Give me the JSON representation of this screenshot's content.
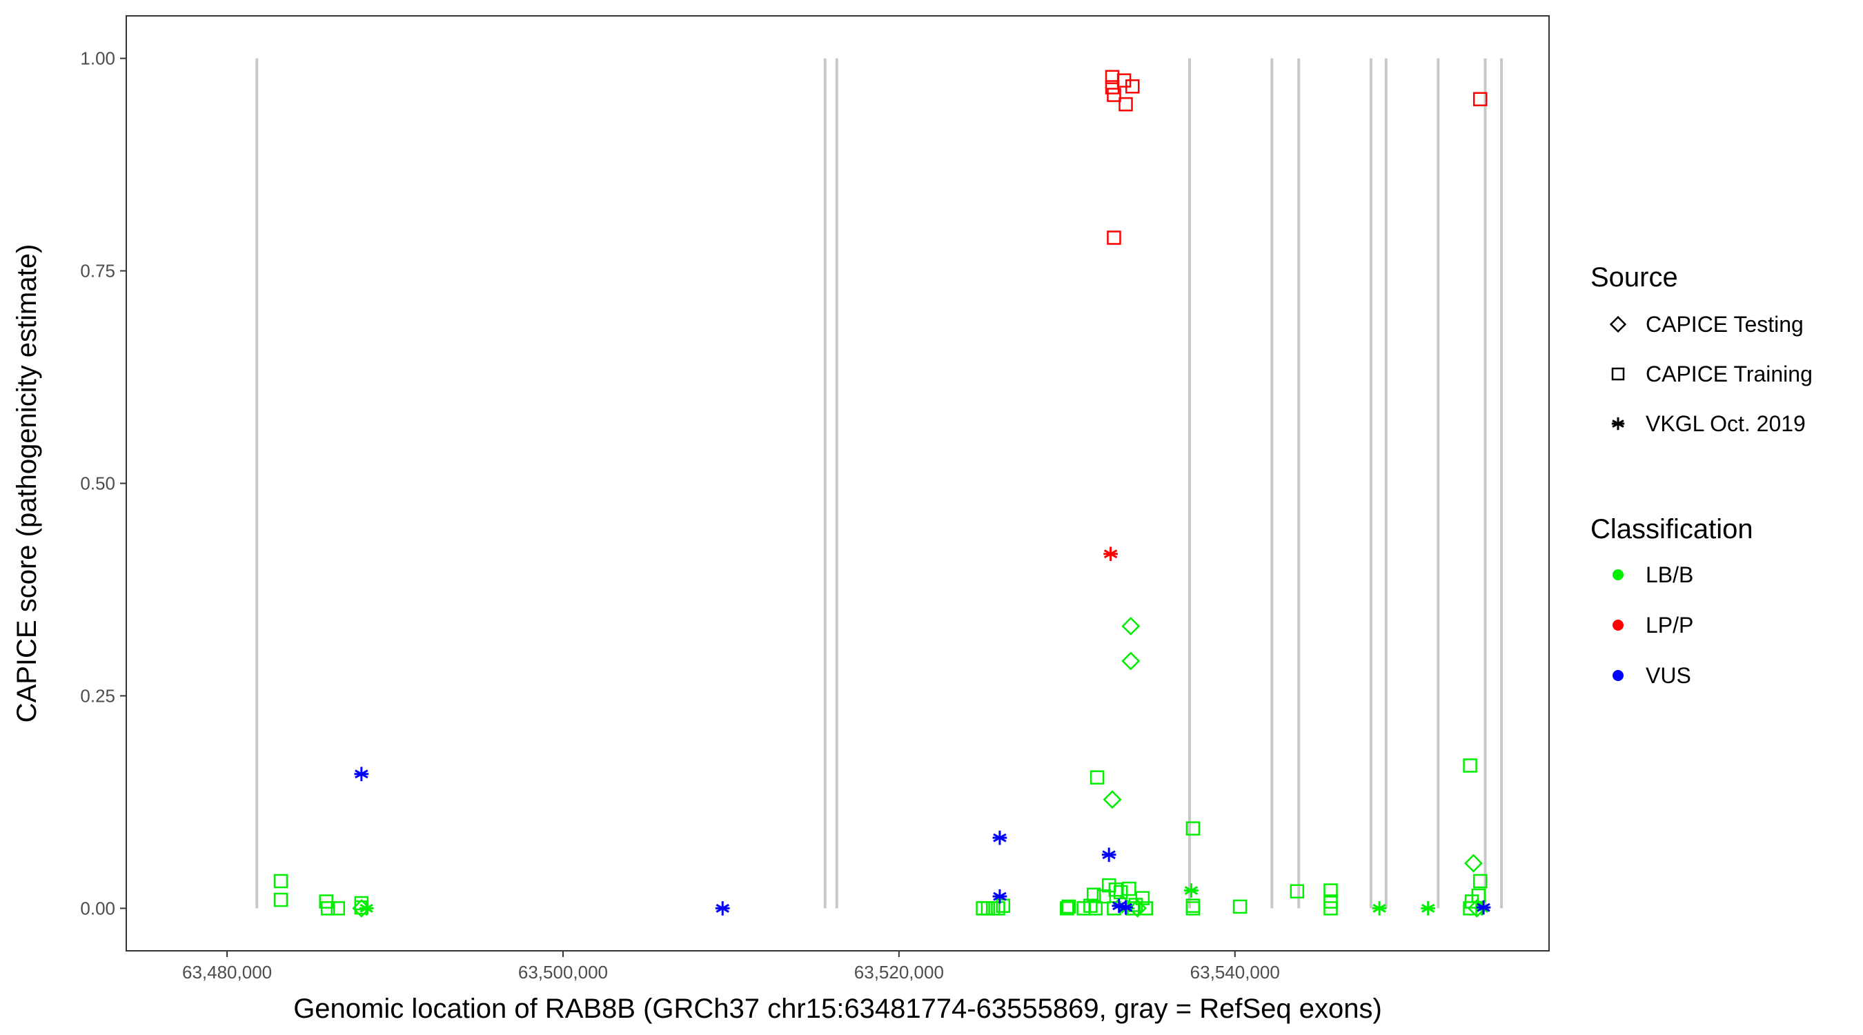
{
  "chart_data": {
    "type": "scatter",
    "xlabel": "Genomic location of RAB8B (GRCh37 chr15:63481774-63555869, gray = RefSeq exons)",
    "ylabel": "CAPICE score (pathogenicity estimate)",
    "xlim": [
      63474000,
      63558700
    ],
    "ylim": [
      -0.05,
      1.05
    ],
    "x_ticks": [
      63480000,
      63500000,
      63520000,
      63540000
    ],
    "x_tick_labels": [
      "63,480,000",
      "63,500,000",
      "63,520,000",
      "63,540,000"
    ],
    "y_ticks": [
      0,
      0.25,
      0.5,
      0.75,
      1.0
    ],
    "y_tick_labels": [
      "0.00",
      "0.25",
      "0.50",
      "0.75",
      "1.00"
    ],
    "grid": false,
    "exon_lines": [
      63481774,
      63515600,
      63516300,
      63537300,
      63542200,
      63543800,
      63548100,
      63549000,
      63552100,
      63554900,
      63555869
    ],
    "exon_line_color": "#c8c8c8",
    "legend_position": "right",
    "legend": {
      "source_title": "Source",
      "sources": [
        {
          "key": "testing",
          "label": "CAPICE Testing",
          "shape": "diamond"
        },
        {
          "key": "training",
          "label": "CAPICE Training",
          "shape": "square"
        },
        {
          "key": "vkgl",
          "label": "VKGL Oct. 2019",
          "shape": "asterisk"
        }
      ],
      "class_title": "Classification",
      "classes": [
        {
          "key": "LB/B",
          "label": "LB/B",
          "color": "#00ee00"
        },
        {
          "key": "LP/P",
          "label": "LP/P",
          "color": "#ff0000"
        },
        {
          "key": "VUS",
          "label": "VUS",
          "color": "#0000ff"
        }
      ]
    },
    "points": [
      {
        "x": 63483200,
        "y": 0.032,
        "source": "training",
        "class": "LB/B"
      },
      {
        "x": 63483200,
        "y": 0.01,
        "source": "training",
        "class": "LB/B"
      },
      {
        "x": 63485900,
        "y": 0.008,
        "source": "training",
        "class": "LB/B"
      },
      {
        "x": 63486000,
        "y": 0.0,
        "source": "training",
        "class": "LB/B"
      },
      {
        "x": 63486600,
        "y": 0.0,
        "source": "training",
        "class": "LB/B"
      },
      {
        "x": 63488000,
        "y": 0.006,
        "source": "training",
        "class": "LB/B"
      },
      {
        "x": 63488000,
        "y": 0.001,
        "source": "training",
        "class": "LB/B"
      },
      {
        "x": 63488300,
        "y": 0.0,
        "source": "vkgl",
        "class": "LB/B"
      },
      {
        "x": 63488000,
        "y": 0.0,
        "source": "testing",
        "class": "LB/B"
      },
      {
        "x": 63488000,
        "y": 0.158,
        "source": "vkgl",
        "class": "VUS"
      },
      {
        "x": 63509500,
        "y": 0.0,
        "source": "vkgl",
        "class": "VUS"
      },
      {
        "x": 63525000,
        "y": 0.0,
        "source": "training",
        "class": "LB/B"
      },
      {
        "x": 63525300,
        "y": 0.0,
        "source": "training",
        "class": "LB/B"
      },
      {
        "x": 63525600,
        "y": 0.0,
        "source": "training",
        "class": "LB/B"
      },
      {
        "x": 63525900,
        "y": 0.0,
        "source": "training",
        "class": "LB/B"
      },
      {
        "x": 63526200,
        "y": 0.003,
        "source": "training",
        "class": "LB/B"
      },
      {
        "x": 63526000,
        "y": 0.083,
        "source": "vkgl",
        "class": "VUS"
      },
      {
        "x": 63526000,
        "y": 0.014,
        "source": "vkgl",
        "class": "VUS"
      },
      {
        "x": 63530000,
        "y": 0.0,
        "source": "training",
        "class": "LB/B"
      },
      {
        "x": 63530100,
        "y": 0.002,
        "source": "training",
        "class": "LB/B"
      },
      {
        "x": 63531000,
        "y": 0.0,
        "source": "training",
        "class": "LB/B"
      },
      {
        "x": 63531400,
        "y": 0.003,
        "source": "training",
        "class": "LB/B"
      },
      {
        "x": 63531700,
        "y": 0.0,
        "source": "training",
        "class": "LB/B"
      },
      {
        "x": 63531600,
        "y": 0.016,
        "source": "training",
        "class": "LB/B"
      },
      {
        "x": 63532200,
        "y": 0.014,
        "source": "training",
        "class": "LB/B"
      },
      {
        "x": 63532500,
        "y": 0.027,
        "source": "training",
        "class": "LB/B"
      },
      {
        "x": 63532900,
        "y": 0.022,
        "source": "training",
        "class": "LB/B"
      },
      {
        "x": 63533200,
        "y": 0.019,
        "source": "training",
        "class": "LB/B"
      },
      {
        "x": 63533700,
        "y": 0.023,
        "source": "training",
        "class": "LB/B"
      },
      {
        "x": 63534100,
        "y": 0.004,
        "source": "training",
        "class": "LB/B"
      },
      {
        "x": 63534500,
        "y": 0.012,
        "source": "training",
        "class": "LB/B"
      },
      {
        "x": 63534700,
        "y": 0.0,
        "source": "training",
        "class": "LB/B"
      },
      {
        "x": 63532800,
        "y": 0.0,
        "source": "training",
        "class": "LB/B"
      },
      {
        "x": 63533900,
        "y": 0.0,
        "source": "training",
        "class": "LB/B"
      },
      {
        "x": 63531800,
        "y": 0.154,
        "source": "training",
        "class": "LB/B"
      },
      {
        "x": 63533800,
        "y": 0.332,
        "source": "testing",
        "class": "LB/B"
      },
      {
        "x": 63533800,
        "y": 0.291,
        "source": "testing",
        "class": "LB/B"
      },
      {
        "x": 63532700,
        "y": 0.128,
        "source": "testing",
        "class": "LB/B"
      },
      {
        "x": 63533300,
        "y": 0.005,
        "source": "testing",
        "class": "LB/B"
      },
      {
        "x": 63534200,
        "y": 0.0,
        "source": "testing",
        "class": "LB/B"
      },
      {
        "x": 63533600,
        "y": 0.0,
        "source": "vkgl",
        "class": "LB/B"
      },
      {
        "x": 63532500,
        "y": 0.063,
        "source": "vkgl",
        "class": "VUS"
      },
      {
        "x": 63533100,
        "y": 0.003,
        "source": "vkgl",
        "class": "VUS"
      },
      {
        "x": 63533500,
        "y": 0.001,
        "source": "vkgl",
        "class": "VUS"
      },
      {
        "x": 63532700,
        "y": 0.978,
        "source": "training",
        "class": "LP/P"
      },
      {
        "x": 63532700,
        "y": 0.966,
        "source": "training",
        "class": "LP/P"
      },
      {
        "x": 63532800,
        "y": 0.957,
        "source": "training",
        "class": "LP/P"
      },
      {
        "x": 63533400,
        "y": 0.974,
        "source": "training",
        "class": "LP/P"
      },
      {
        "x": 63533900,
        "y": 0.967,
        "source": "training",
        "class": "LP/P"
      },
      {
        "x": 63533500,
        "y": 0.946,
        "source": "training",
        "class": "LP/P"
      },
      {
        "x": 63532800,
        "y": 0.789,
        "source": "training",
        "class": "LP/P"
      },
      {
        "x": 63532600,
        "y": 0.417,
        "source": "vkgl",
        "class": "LP/P"
      },
      {
        "x": 63537500,
        "y": 0.094,
        "source": "training",
        "class": "LB/B"
      },
      {
        "x": 63537500,
        "y": 0.003,
        "source": "training",
        "class": "LB/B"
      },
      {
        "x": 63537500,
        "y": 0.0,
        "source": "training",
        "class": "LB/B"
      },
      {
        "x": 63537400,
        "y": 0.021,
        "source": "vkgl",
        "class": "LB/B"
      },
      {
        "x": 63540300,
        "y": 0.002,
        "source": "training",
        "class": "LB/B"
      },
      {
        "x": 63543700,
        "y": 0.02,
        "source": "training",
        "class": "LB/B"
      },
      {
        "x": 63545700,
        "y": 0.021,
        "source": "training",
        "class": "LB/B"
      },
      {
        "x": 63545700,
        "y": 0.008,
        "source": "training",
        "class": "LB/B"
      },
      {
        "x": 63545700,
        "y": 0.0,
        "source": "training",
        "class": "LB/B"
      },
      {
        "x": 63548600,
        "y": 0.0,
        "source": "vkgl",
        "class": "LB/B"
      },
      {
        "x": 63551500,
        "y": 0.0,
        "source": "vkgl",
        "class": "LB/B"
      },
      {
        "x": 63554000,
        "y": 0.168,
        "source": "training",
        "class": "LB/B"
      },
      {
        "x": 63554200,
        "y": 0.053,
        "source": "testing",
        "class": "LB/B"
      },
      {
        "x": 63554600,
        "y": 0.032,
        "source": "training",
        "class": "LB/B"
      },
      {
        "x": 63554500,
        "y": 0.015,
        "source": "training",
        "class": "LB/B"
      },
      {
        "x": 63554100,
        "y": 0.008,
        "source": "training",
        "class": "LB/B"
      },
      {
        "x": 63554000,
        "y": 0.0,
        "source": "training",
        "class": "LB/B"
      },
      {
        "x": 63554400,
        "y": 0.0,
        "source": "testing",
        "class": "LB/B"
      },
      {
        "x": 63554700,
        "y": 0.0,
        "source": "vkgl",
        "class": "LB/B"
      },
      {
        "x": 63554800,
        "y": 0.001,
        "source": "vkgl",
        "class": "VUS"
      },
      {
        "x": 63554600,
        "y": 0.952,
        "source": "training",
        "class": "LP/P"
      }
    ]
  }
}
